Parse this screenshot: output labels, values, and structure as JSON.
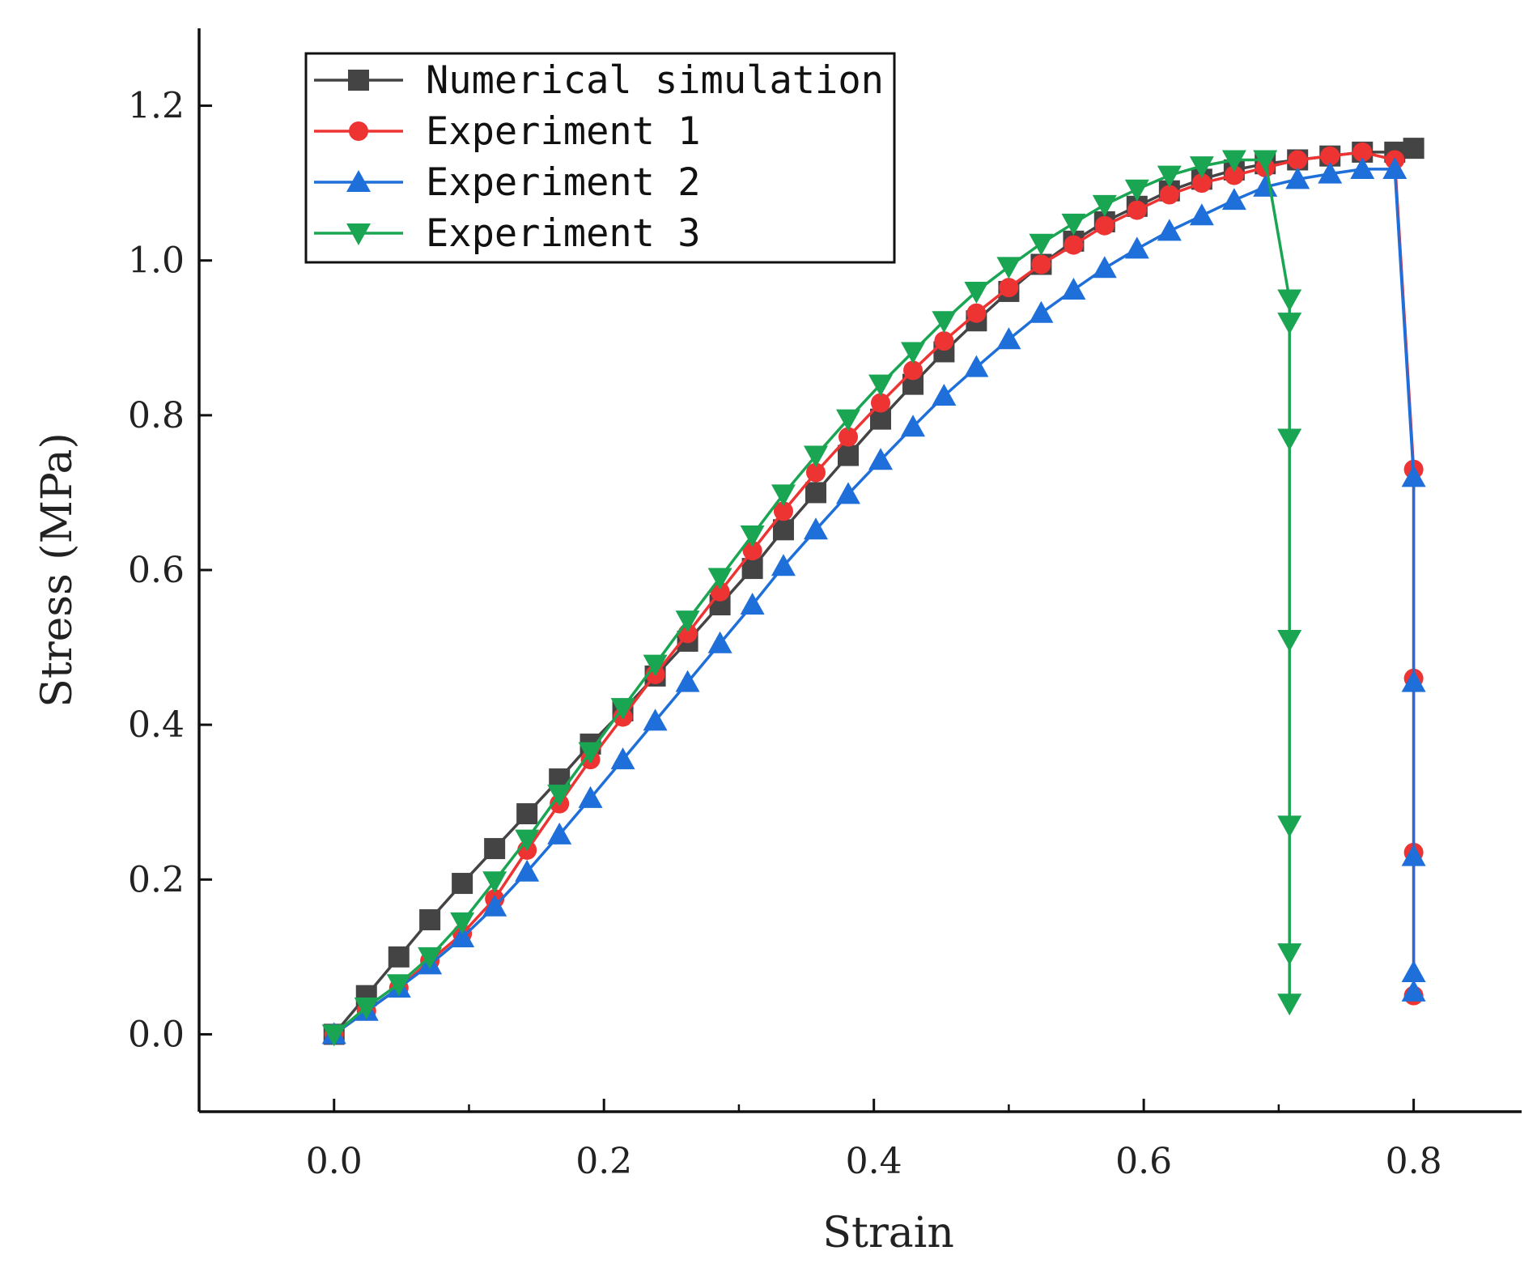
{
  "chart_data": {
    "type": "line",
    "title": "",
    "xlabel": "Strain",
    "ylabel": "Stress (MPa)",
    "xlim": [
      -0.1,
      0.88
    ],
    "ylim": [
      -0.1,
      1.3
    ],
    "xticks": [
      0.0,
      0.2,
      0.4,
      0.6,
      0.8
    ],
    "xtick_labels": [
      "0.0",
      "0.2",
      "0.4",
      "0.6",
      "0.8"
    ],
    "yticks": [
      0.0,
      0.2,
      0.4,
      0.6,
      0.8,
      1.0,
      1.2
    ],
    "ytick_labels": [
      "0.0",
      "0.2",
      "0.4",
      "0.6",
      "0.8",
      "1.0",
      "1.2"
    ],
    "grid": false,
    "legend_position": "top-left",
    "series": [
      {
        "name": "Numerical simulation",
        "color": "#444444",
        "marker": "square",
        "x": [
          0,
          0.024,
          0.048,
          0.071,
          0.095,
          0.119,
          0.143,
          0.167,
          0.19,
          0.214,
          0.238,
          0.262,
          0.286,
          0.31,
          0.333,
          0.357,
          0.381,
          0.405,
          0.429,
          0.452,
          0.476,
          0.5,
          0.524,
          0.548,
          0.571,
          0.595,
          0.619,
          0.643,
          0.667,
          0.69,
          0.714,
          0.738,
          0.762,
          0.786,
          0.8
        ],
        "y": [
          0,
          0.05,
          0.1,
          0.148,
          0.195,
          0.24,
          0.285,
          0.33,
          0.375,
          0.418,
          0.463,
          0.508,
          0.555,
          0.602,
          0.652,
          0.7,
          0.748,
          0.795,
          0.84,
          0.882,
          0.922,
          0.96,
          0.995,
          1.025,
          1.05,
          1.07,
          1.09,
          1.105,
          1.117,
          1.125,
          1.13,
          1.135,
          1.14,
          1.14,
          1.145
        ]
      },
      {
        "name": "Experiment 1",
        "color": "#ee3333",
        "marker": "circle",
        "x": [
          0,
          0.024,
          0.048,
          0.071,
          0.095,
          0.119,
          0.143,
          0.167,
          0.19,
          0.214,
          0.238,
          0.262,
          0.286,
          0.31,
          0.333,
          0.357,
          0.381,
          0.405,
          0.429,
          0.452,
          0.476,
          0.5,
          0.524,
          0.548,
          0.571,
          0.595,
          0.619,
          0.643,
          0.667,
          0.69,
          0.714,
          0.738,
          0.762,
          0.786,
          0.8,
          0.8,
          0.8,
          0.8
        ],
        "y": [
          0,
          0.03,
          0.06,
          0.095,
          0.13,
          0.175,
          0.238,
          0.298,
          0.355,
          0.41,
          0.465,
          0.518,
          0.572,
          0.625,
          0.676,
          0.726,
          0.772,
          0.816,
          0.858,
          0.896,
          0.932,
          0.965,
          0.995,
          1.02,
          1.045,
          1.065,
          1.085,
          1.1,
          1.11,
          1.12,
          1.13,
          1.135,
          1.14,
          1.13,
          0.73,
          0.46,
          0.235,
          0.05
        ]
      },
      {
        "name": "Experiment 2",
        "color": "#1e6fd9",
        "marker": "triangle-up",
        "x": [
          0,
          0.024,
          0.048,
          0.071,
          0.095,
          0.119,
          0.143,
          0.167,
          0.19,
          0.214,
          0.238,
          0.262,
          0.286,
          0.31,
          0.333,
          0.357,
          0.381,
          0.405,
          0.429,
          0.452,
          0.476,
          0.5,
          0.524,
          0.548,
          0.571,
          0.595,
          0.619,
          0.643,
          0.667,
          0.69,
          0.714,
          0.738,
          0.762,
          0.786,
          0.8,
          0.8,
          0.8,
          0.8,
          0.8
        ],
        "y": [
          0,
          0.03,
          0.06,
          0.09,
          0.125,
          0.165,
          0.21,
          0.258,
          0.305,
          0.355,
          0.405,
          0.455,
          0.505,
          0.555,
          0.605,
          0.652,
          0.698,
          0.742,
          0.785,
          0.825,
          0.862,
          0.898,
          0.932,
          0.962,
          0.99,
          1.015,
          1.038,
          1.058,
          1.078,
          1.095,
          1.105,
          1.112,
          1.118,
          1.118,
          0.72,
          0.455,
          0.23,
          0.08,
          0.055
        ]
      },
      {
        "name": "Experiment 3",
        "color": "#1aa553",
        "marker": "triangle-down",
        "x": [
          0,
          0.024,
          0.048,
          0.071,
          0.095,
          0.119,
          0.143,
          0.167,
          0.19,
          0.214,
          0.238,
          0.262,
          0.286,
          0.31,
          0.333,
          0.357,
          0.381,
          0.405,
          0.429,
          0.452,
          0.476,
          0.5,
          0.524,
          0.548,
          0.571,
          0.595,
          0.619,
          0.643,
          0.667,
          0.69,
          0.708,
          0.708,
          0.708,
          0.708,
          0.708,
          0.708,
          0.708
        ],
        "y": [
          0,
          0.035,
          0.065,
          0.1,
          0.145,
          0.198,
          0.252,
          0.31,
          0.365,
          0.422,
          0.478,
          0.535,
          0.59,
          0.645,
          0.698,
          0.748,
          0.795,
          0.84,
          0.882,
          0.922,
          0.96,
          0.992,
          1.022,
          1.048,
          1.072,
          1.092,
          1.11,
          1.122,
          1.13,
          1.13,
          0.95,
          0.92,
          0.77,
          0.51,
          0.27,
          0.105,
          0.04
        ]
      }
    ]
  }
}
